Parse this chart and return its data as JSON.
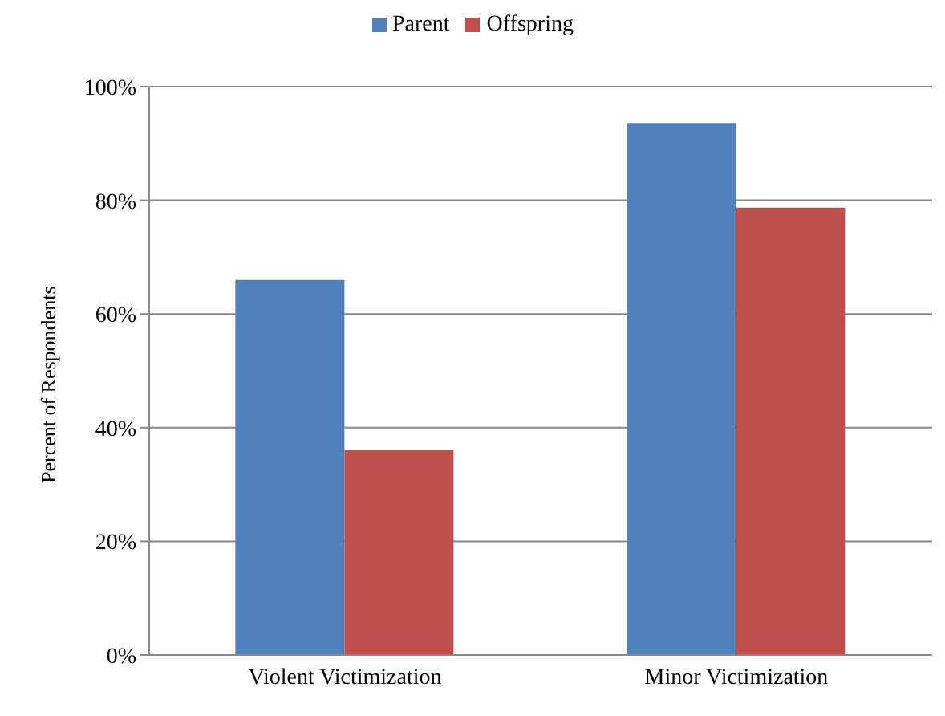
{
  "chart_data": {
    "type": "bar",
    "ylabel": "Percent of Respondents",
    "categories": [
      "Violent Victimization",
      "Minor Victimization"
    ],
    "series": [
      {
        "name": "Parent",
        "color": "#4f81bd",
        "values": [
          66.0,
          93.6
        ]
      },
      {
        "name": "Offspring",
        "color": "#c0504d",
        "values": [
          36.1,
          78.7
        ]
      }
    ],
    "ylim": [
      0,
      100
    ],
    "yticks": [
      {
        "value": 0,
        "label": "0%"
      },
      {
        "value": 20,
        "label": "20%"
      },
      {
        "value": 40,
        "label": "40%"
      },
      {
        "value": 60,
        "label": "60%"
      },
      {
        "value": 80,
        "label": "80%"
      },
      {
        "value": 100,
        "label": "100%"
      }
    ],
    "grid": "y",
    "legend": "top"
  }
}
